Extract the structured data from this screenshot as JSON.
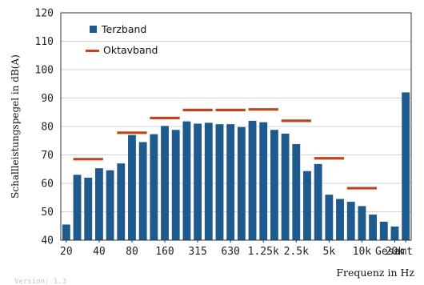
{
  "chart_data": {
    "type": "bar",
    "title": "",
    "ylabel": "Schallleistungspegel in dB(A)",
    "xlabel": "Frequenz in Hz",
    "ylim": [
      40,
      120
    ],
    "yticks": [
      40,
      50,
      60,
      70,
      80,
      90,
      100,
      110,
      120
    ],
    "grid": true,
    "legend_position": "top-left",
    "categories": [
      "20",
      "25",
      "31.5",
      "40",
      "50",
      "63",
      "80",
      "100",
      "125",
      "160",
      "200",
      "250",
      "315",
      "400",
      "500",
      "630",
      "800",
      "1k",
      "1.25k",
      "1.6k",
      "2k",
      "2.5k",
      "3.15k",
      "4k",
      "5k",
      "6.3k",
      "8k",
      "10k",
      "12.5k",
      "16k",
      "20k",
      "Gesamt"
    ],
    "xtick_labels": [
      "20",
      "40",
      "80",
      "160",
      "315",
      "630",
      "1.25k",
      "2.5k",
      "5k",
      "10k",
      "20k",
      "Gesamt"
    ],
    "series": [
      {
        "name": "Terzband",
        "type": "bar",
        "color": "#1f5a8f",
        "values": [
          45.5,
          63.0,
          62.0,
          65.3,
          64.6,
          67.0,
          77.0,
          74.5,
          77.3,
          80.2,
          78.8,
          81.8,
          81.0,
          81.3,
          80.8,
          80.8,
          79.8,
          82.0,
          81.5,
          78.8,
          77.5,
          73.8,
          64.3,
          66.8,
          56.0,
          54.5,
          53.5,
          52.0,
          49.0,
          46.5,
          44.8,
          null
        ]
      },
      {
        "name": "Oktavband",
        "type": "level-line",
        "color": "#c0441e",
        "bands": [
          {
            "from": "25",
            "to": "40",
            "value": 68.5
          },
          {
            "from": "63",
            "to": "100",
            "value": 77.8
          },
          {
            "from": "125",
            "to": "200",
            "value": 83.0
          },
          {
            "from": "250",
            "to": "400",
            "value": 85.8
          },
          {
            "from": "500",
            "to": "800",
            "value": 85.8
          },
          {
            "from": "1k",
            "to": "1.6k",
            "value": 86.0
          },
          {
            "from": "2k",
            "to": "3.15k",
            "value": 82.0
          },
          {
            "from": "4k",
            "to": "6.3k",
            "value": 68.8
          },
          {
            "from": "8k",
            "to": "12.5k",
            "value": 58.3
          }
        ]
      },
      {
        "name": "Gesamt",
        "type": "bar",
        "color": "#1f5a8f",
        "values": [
          null,
          null,
          null,
          null,
          null,
          null,
          null,
          null,
          null,
          null,
          null,
          null,
          null,
          null,
          null,
          null,
          null,
          null,
          null,
          null,
          null,
          null,
          null,
          null,
          null,
          null,
          null,
          null,
          null,
          null,
          null,
          92.0
        ]
      }
    ]
  },
  "footer": {
    "version": "Version: 1.3"
  }
}
